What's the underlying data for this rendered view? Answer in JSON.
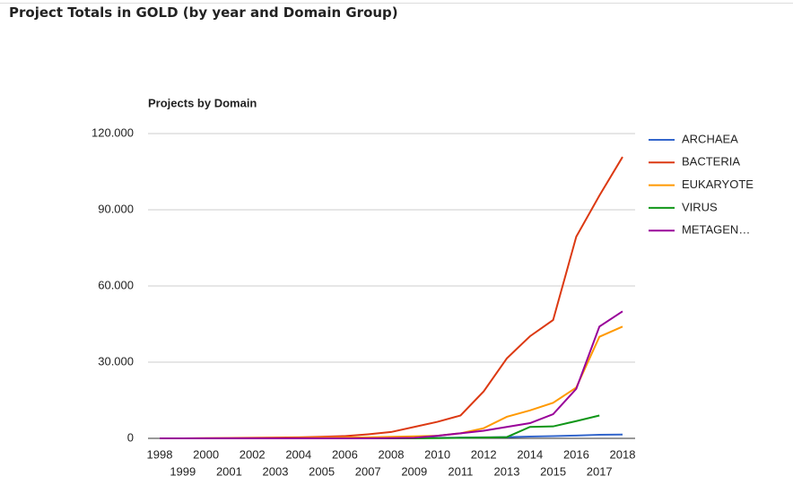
{
  "page": {
    "title": "Project Totals in GOLD (by year and Domain Group)"
  },
  "chart_data": {
    "type": "line",
    "title": "Projects by Domain",
    "x": [
      1998,
      1999,
      2000,
      2001,
      2002,
      2003,
      2004,
      2005,
      2006,
      2007,
      2008,
      2009,
      2010,
      2011,
      2012,
      2013,
      2014,
      2015,
      2016,
      2017,
      2018
    ],
    "xlim": [
      1998,
      2018
    ],
    "ylim": [
      0,
      120000
    ],
    "yticks": [
      0,
      {
        "value": 30000,
        "label": "30.000"
      },
      {
        "value": 60000,
        "label": "60.000"
      },
      {
        "value": 90000,
        "label": "90.000"
      },
      {
        "value": 120000,
        "label": "120.000"
      }
    ],
    "grid": true,
    "legend": "right",
    "series": [
      {
        "name": "ARCHAEA",
        "color": "#3366cc",
        "values": [
          0,
          0,
          0,
          0,
          0,
          0,
          0,
          0,
          0,
          0,
          0,
          100,
          200,
          300,
          400,
          500,
          700,
          900,
          1100,
          1400,
          1500
        ]
      },
      {
        "name": "BACTERIA",
        "color": "#dc3912",
        "values": [
          0,
          0,
          100,
          150,
          200,
          300,
          400,
          600,
          900,
          1600,
          2500,
          4500,
          6500,
          9000,
          18500,
          31500,
          40200,
          46600,
          79400,
          95600,
          110800
        ]
      },
      {
        "name": "EUKARYOTE",
        "color": "#ff9900",
        "values": [
          0,
          0,
          0,
          0,
          50,
          100,
          150,
          200,
          300,
          400,
          600,
          800,
          1000,
          2000,
          4000,
          8500,
          11000,
          14000,
          20000,
          40000,
          44000
        ]
      },
      {
        "name": "VIRUS",
        "color": "#109618",
        "values": [
          0,
          0,
          0,
          0,
          0,
          0,
          0,
          0,
          0,
          0,
          0,
          0,
          100,
          200,
          300,
          500,
          4500,
          4700,
          6800,
          9000,
          null
        ]
      },
      {
        "name": "METAGEN…",
        "color": "#990099",
        "values": [
          0,
          0,
          0,
          0,
          0,
          0,
          0,
          0,
          0,
          0,
          100,
          200,
          1000,
          2000,
          3000,
          4500,
          6000,
          9500,
          19500,
          44000,
          50000
        ]
      }
    ]
  }
}
